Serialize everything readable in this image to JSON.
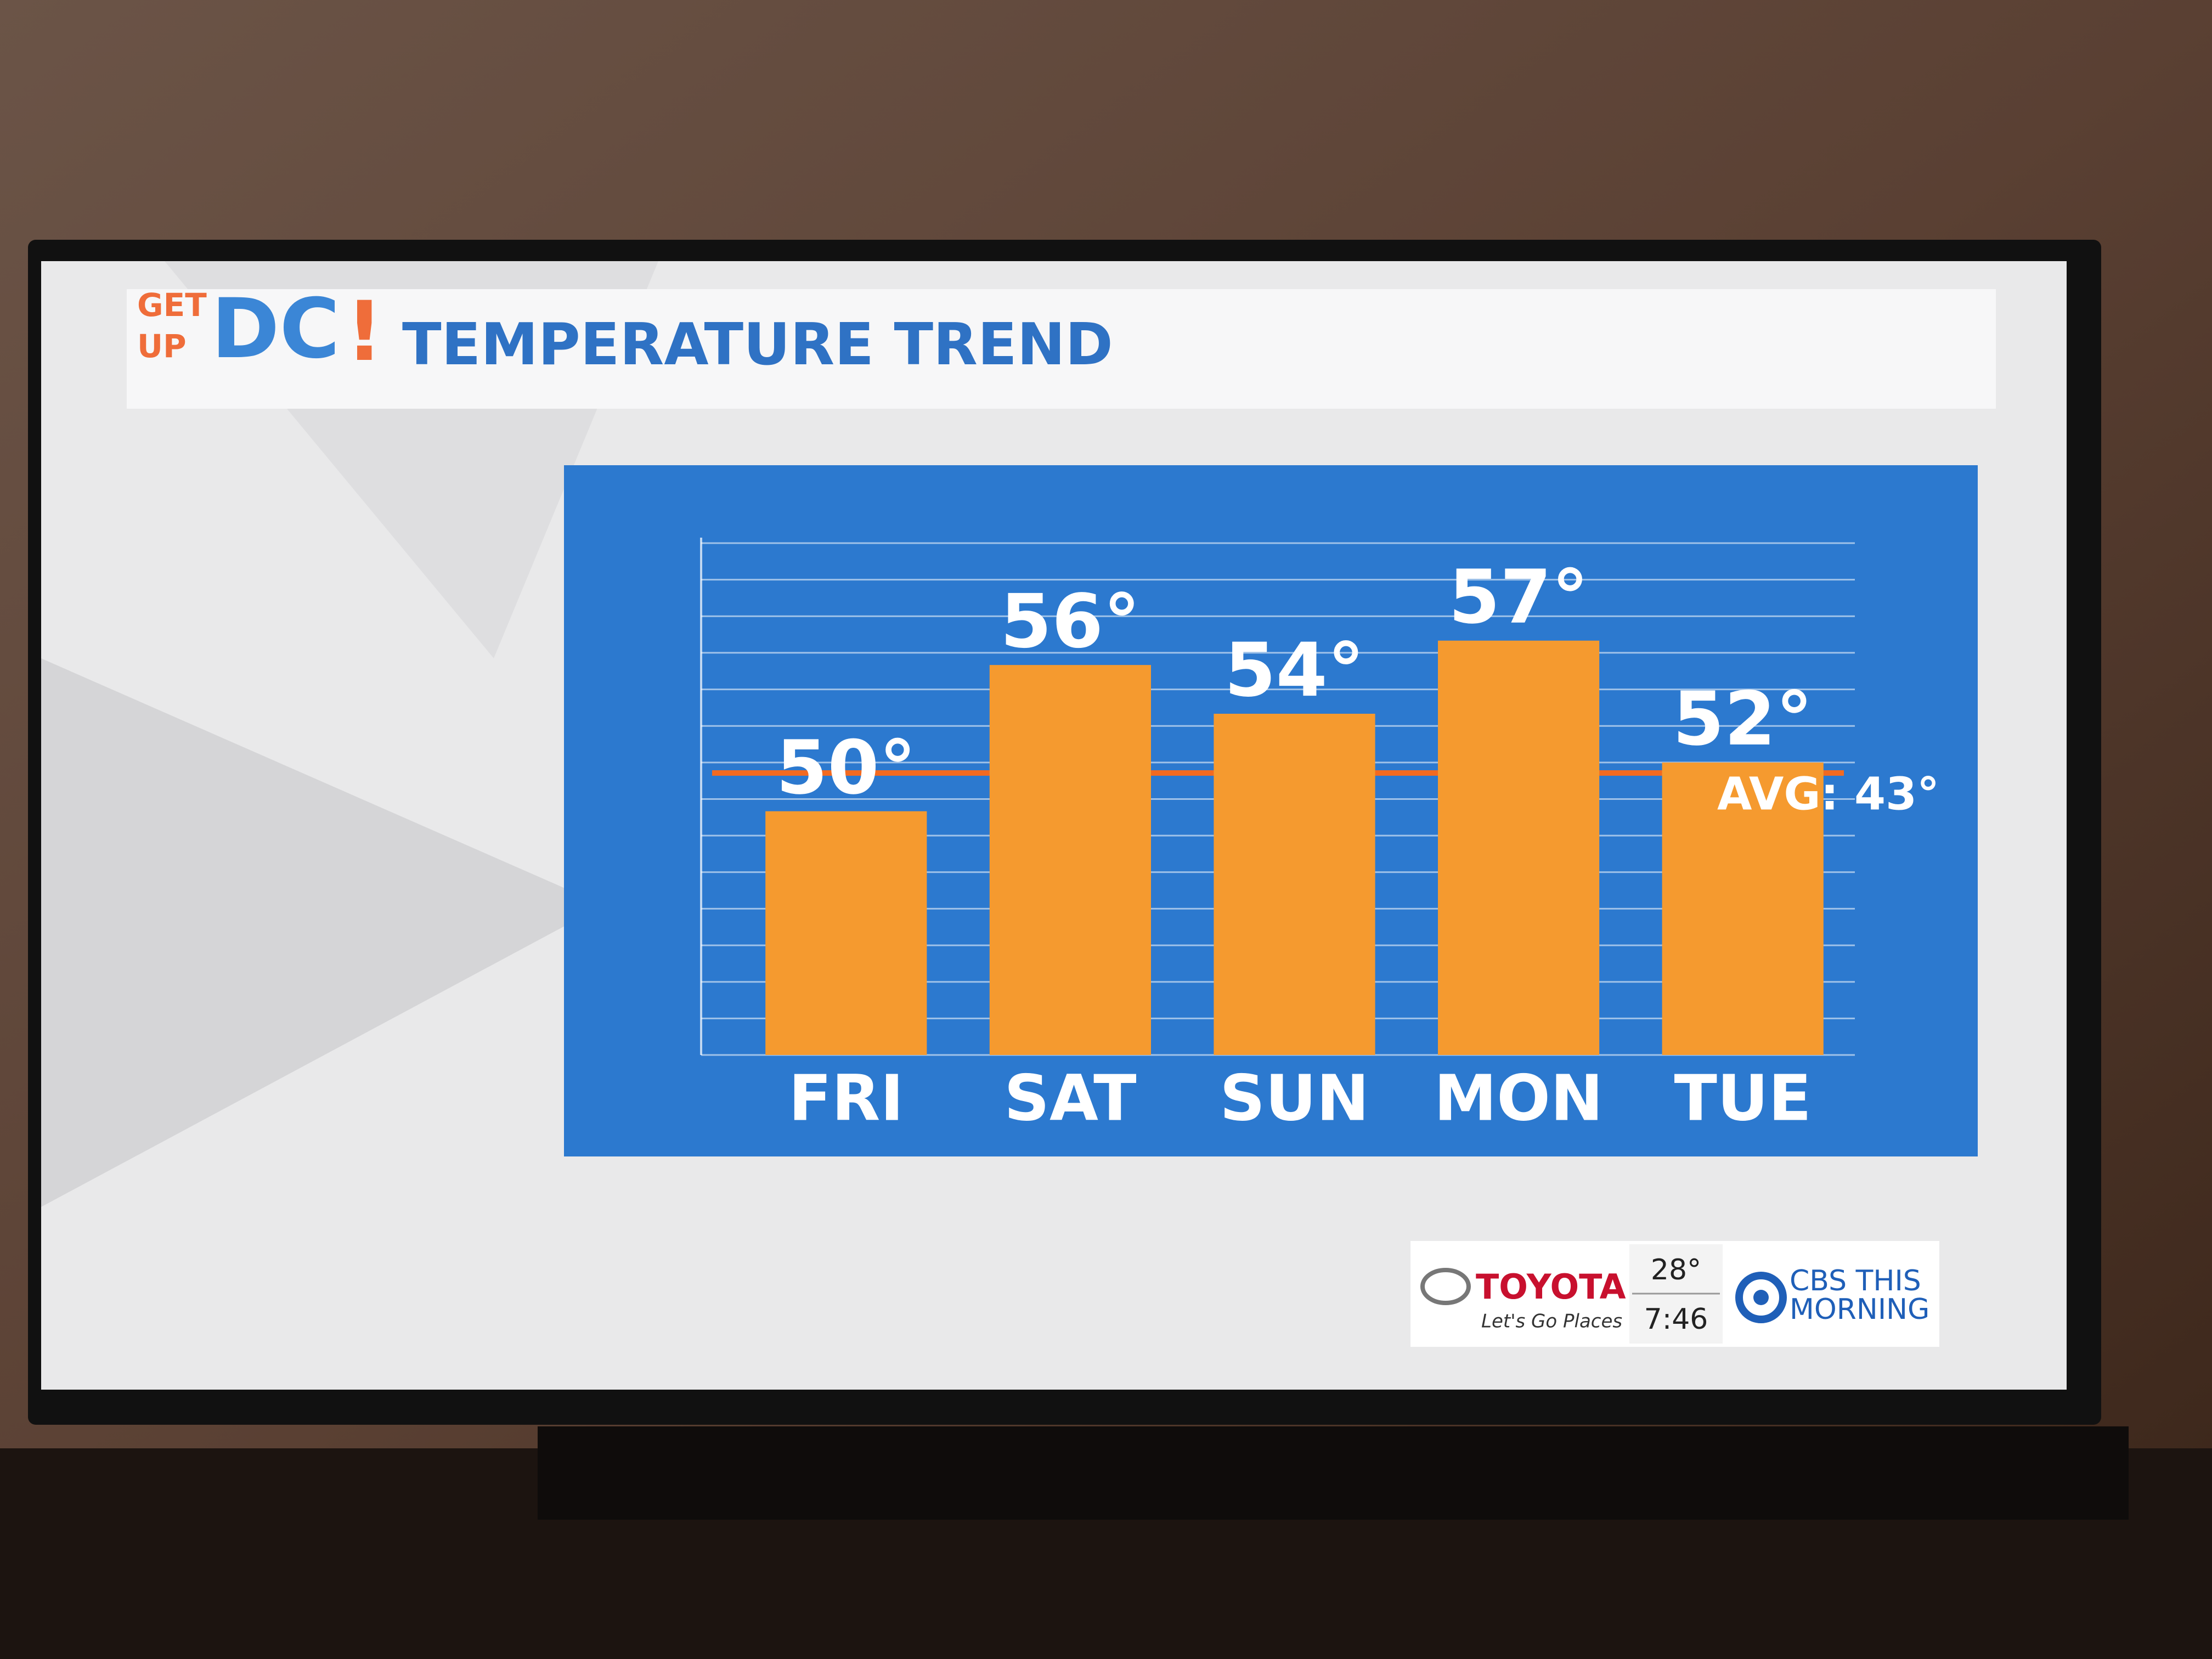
{
  "header": {
    "logo_top": "GET",
    "logo_bottom": "UP",
    "logo_main": "DC",
    "logo_bang": "!"
  },
  "chart_data": {
    "type": "bar",
    "title": "TEMPERATURE TREND",
    "categories": [
      "FRI",
      "SAT",
      "SUN",
      "MON",
      "TUE"
    ],
    "values": [
      50,
      56,
      54,
      57,
      52
    ],
    "value_labels": [
      "50°",
      "56°",
      "54°",
      "57°",
      "52°"
    ],
    "color": "#f59a2f",
    "ylim": [
      40,
      61
    ],
    "yticks": [
      40,
      41.5,
      43,
      44.5,
      46,
      47.5,
      49,
      50.5,
      52,
      53.5,
      55,
      56.5,
      58,
      59.5,
      61
    ],
    "grid": true,
    "annotation": "AVG: 43°"
  },
  "bug": {
    "sponsor": "TOYOTA",
    "tagline": "Let's Go Places",
    "temperature": "28°",
    "time": "7:46",
    "network_line1": "CBS THIS",
    "network_line2": "MORNING"
  }
}
